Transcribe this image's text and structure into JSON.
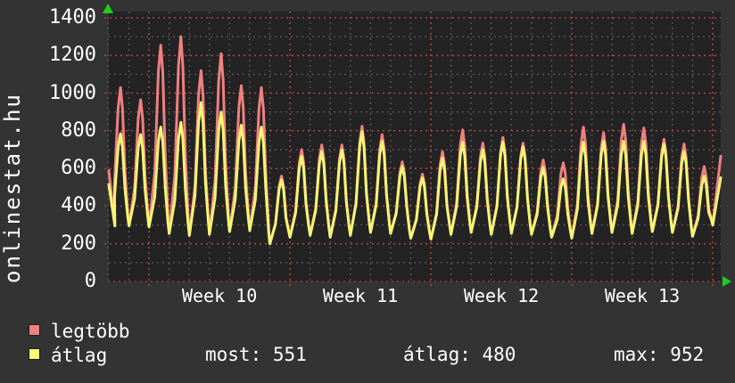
{
  "watermark": "onlinestat.hu",
  "colors": {
    "outer_bg": "#333333",
    "plot_bg": "#232323",
    "grid_minor": "#565656",
    "grid_major": "#a84343",
    "axis_red": "#9c3b3b",
    "arrow_green": "#1ecc1e",
    "text": "#ffffff",
    "series_legtobb": "#f08080",
    "series_atlag": "#f5f574"
  },
  "y_axis": {
    "ticks": [
      1400,
      1200,
      1000,
      800,
      600,
      400,
      200,
      0
    ],
    "minor_step": 100
  },
  "x_axis": {
    "week_labels": [
      "Week 10",
      "Week 11",
      "Week 12",
      "Week 13"
    ]
  },
  "legend": [
    {
      "label": "legtöbb",
      "color": "#f08080"
    },
    {
      "label": "átlag",
      "color": "#fafa78"
    }
  ],
  "stats": [
    {
      "label": "most:",
      "value": "551"
    },
    {
      "label": "átlag:",
      "value": "480"
    },
    {
      "label": "max:",
      "value": "952"
    }
  ],
  "chart_data": {
    "type": "line",
    "title": "onlinestat.hu visitors graph",
    "ylim": [
      0,
      1400
    ],
    "x_domain_days": [
      0,
      30.4
    ],
    "week_start_days": [
      2,
      9,
      16,
      23,
      30
    ],
    "week_labels": [
      "Week 10",
      "Week 11",
      "Week 12",
      "Week 13"
    ],
    "series_names": {
      "legtobb": "legtöbb",
      "atlag": "átlag"
    },
    "grid": {
      "y_major": 200,
      "y_minor": 100,
      "x_minor_days": 1
    },
    "start_values": {
      "legtobb": 590,
      "atlag": 515
    },
    "end_values": {
      "trough": 300,
      "legtobb": 665,
      "atlag": 551
    },
    "days": [
      {
        "trough": 295,
        "legtobb": 1030,
        "atlag": 785
      },
      {
        "trough": 295,
        "legtobb": 965,
        "atlag": 780
      },
      {
        "trough": 290,
        "legtobb": 1255,
        "atlag": 820
      },
      {
        "trough": 255,
        "legtobb": 1300,
        "atlag": 845
      },
      {
        "trough": 245,
        "legtobb": 1120,
        "atlag": 950
      },
      {
        "trough": 250,
        "legtobb": 1210,
        "atlag": 900
      },
      {
        "trough": 265,
        "legtobb": 1040,
        "atlag": 830
      },
      {
        "trough": 270,
        "legtobb": 1030,
        "atlag": 820
      },
      {
        "trough": 200,
        "legtobb": 560,
        "atlag": 540
      },
      {
        "trough": 235,
        "legtobb": 700,
        "atlag": 665
      },
      {
        "trough": 245,
        "legtobb": 725,
        "atlag": 690
      },
      {
        "trough": 235,
        "legtobb": 725,
        "atlag": 700
      },
      {
        "trough": 245,
        "legtobb": 825,
        "atlag": 795
      },
      {
        "trough": 260,
        "legtobb": 780,
        "atlag": 745
      },
      {
        "trough": 255,
        "legtobb": 635,
        "atlag": 610
      },
      {
        "trough": 230,
        "legtobb": 570,
        "atlag": 550
      },
      {
        "trough": 225,
        "legtobb": 690,
        "atlag": 655
      },
      {
        "trough": 250,
        "legtobb": 805,
        "atlag": 740
      },
      {
        "trough": 260,
        "legtobb": 735,
        "atlag": 700
      },
      {
        "trough": 250,
        "legtobb": 765,
        "atlag": 740
      },
      {
        "trough": 255,
        "legtobb": 735,
        "atlag": 715
      },
      {
        "trough": 250,
        "legtobb": 645,
        "atlag": 605
      },
      {
        "trough": 235,
        "legtobb": 630,
        "atlag": 545
      },
      {
        "trough": 230,
        "legtobb": 820,
        "atlag": 740
      },
      {
        "trough": 255,
        "legtobb": 790,
        "atlag": 745
      },
      {
        "trough": 260,
        "legtobb": 835,
        "atlag": 745
      },
      {
        "trough": 255,
        "legtobb": 815,
        "atlag": 745
      },
      {
        "trough": 265,
        "legtobb": 755,
        "atlag": 730
      },
      {
        "trough": 260,
        "legtobb": 730,
        "atlag": 690
      },
      {
        "trough": 240,
        "legtobb": 610,
        "atlag": 560
      }
    ]
  }
}
